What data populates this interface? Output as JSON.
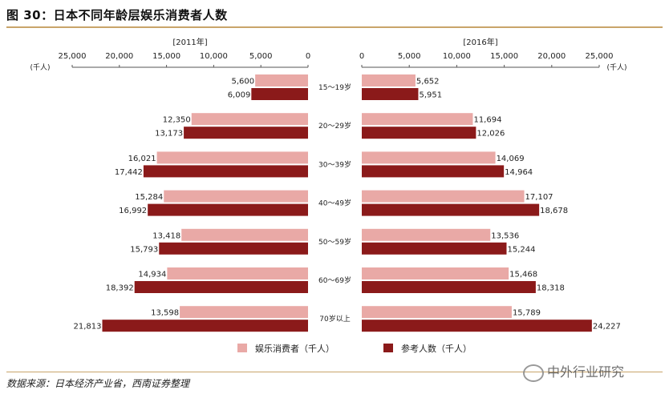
{
  "title": "图 30：日本不同年龄层娱乐消费者人数",
  "source": "数据来源：日本经济产业省，西南证券整理",
  "watermark": "中外行业研究",
  "chart_data": {
    "type": "bar",
    "orientation": "horizontal-butterfly",
    "unit_label": "(千人)",
    "categories": [
      "15～19岁",
      "20～29岁",
      "30～39岁",
      "40～49岁",
      "50～59岁",
      "60～69岁",
      "70岁以上"
    ],
    "panels": [
      {
        "title": "[2011年]",
        "direction": "left",
        "xlim": [
          0,
          25000
        ],
        "ticks": [
          "0",
          "5,000",
          "10,000",
          "15,000",
          "20,000",
          "25,000"
        ],
        "tick_values": [
          0,
          5000,
          10000,
          15000,
          20000,
          25000
        ],
        "series": [
          {
            "name": "娱乐消费者（千人）",
            "values": [
              5600,
              12350,
              16021,
              15284,
              13418,
              14934,
              13598
            ],
            "labels": [
              "5,600",
              "12,350",
              "16,021",
              "15,284",
              "13,418",
              "14,934",
              "13,598"
            ]
          },
          {
            "name": "参考人数（千人）",
            "values": [
              6009,
              13173,
              17442,
              16992,
              15793,
              18392,
              21813
            ],
            "labels": [
              "6,009",
              "13,173",
              "17,442",
              "16,992",
              "15,793",
              "18,392",
              "21,813"
            ]
          }
        ]
      },
      {
        "title": "[2016年]",
        "direction": "right",
        "xlim": [
          0,
          25000
        ],
        "ticks": [
          "0",
          "5,000",
          "10,000",
          "15,000",
          "20,000",
          "25,000"
        ],
        "tick_values": [
          0,
          5000,
          10000,
          15000,
          20000,
          25000
        ],
        "series": [
          {
            "name": "娱乐消费者（千人）",
            "values": [
              5652,
              11694,
              14069,
              17107,
              13536,
              15468,
              15789
            ],
            "labels": [
              "5,652",
              "11,694",
              "14,069",
              "17,107",
              "13,536",
              "15,468",
              "15,789"
            ]
          },
          {
            "name": "参考人数（千人）",
            "values": [
              5951,
              12026,
              14964,
              18678,
              15244,
              18318,
              24227
            ],
            "labels": [
              "5,951",
              "12,026",
              "14,964",
              "18,678",
              "15,244",
              "18,318",
              "24,227"
            ]
          }
        ]
      }
    ],
    "legend": {
      "position": "bottom-center",
      "items": [
        "娱乐消费者（千人）",
        "参考人数（千人）"
      ]
    },
    "colors": {
      "consumers": "#e9a9a6",
      "reference": "#8b1a1a"
    },
    "grid": false
  }
}
